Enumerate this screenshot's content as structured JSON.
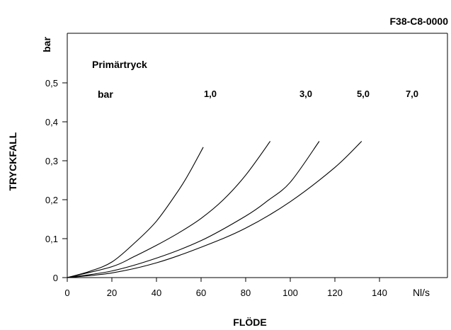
{
  "chart_data": {
    "type": "line",
    "code": "F38-C8-0000",
    "xlabel": "FLÖDE",
    "ylabel": "TRYCKFALL",
    "x_unit": "Nl/s",
    "y_unit": "bar",
    "xlim": [
      0,
      160
    ],
    "ylim": [
      0,
      0.55
    ],
    "x_ticks": [
      0,
      20,
      40,
      60,
      80,
      100,
      120,
      140
    ],
    "x_tick_labels": [
      "0",
      "20",
      "40",
      "60",
      "80",
      "100",
      "120",
      "140"
    ],
    "y_ticks": [
      0,
      0.1,
      0.2,
      0.3,
      0.4,
      0.5
    ],
    "y_tick_labels": [
      "0",
      "0,1",
      "0,2",
      "0,3",
      "0,4",
      "0,5"
    ],
    "grid": false,
    "legend_title": "Primärtryck",
    "legend_unit": "bar",
    "series": [
      {
        "name": "1,0",
        "x": [
          0,
          10,
          20,
          30,
          40,
          50,
          55,
          61
        ],
        "y": [
          0,
          0.016,
          0.04,
          0.088,
          0.145,
          0.225,
          0.272,
          0.335
        ]
      },
      {
        "name": "3,0",
        "x": [
          0,
          20,
          30,
          40,
          50,
          60,
          70,
          80,
          91
        ],
        "y": [
          0,
          0.028,
          0.054,
          0.083,
          0.115,
          0.152,
          0.2,
          0.263,
          0.35
        ]
      },
      {
        "name": "5,0",
        "x": [
          0,
          20,
          40,
          60,
          80,
          90,
          100,
          113
        ],
        "y": [
          0,
          0.017,
          0.05,
          0.095,
          0.158,
          0.198,
          0.245,
          0.35
        ]
      },
      {
        "name": "7,0",
        "x": [
          0,
          20,
          40,
          60,
          80,
          100,
          120,
          132
        ],
        "y": [
          0,
          0.012,
          0.038,
          0.078,
          0.127,
          0.195,
          0.283,
          0.35
        ]
      }
    ]
  }
}
